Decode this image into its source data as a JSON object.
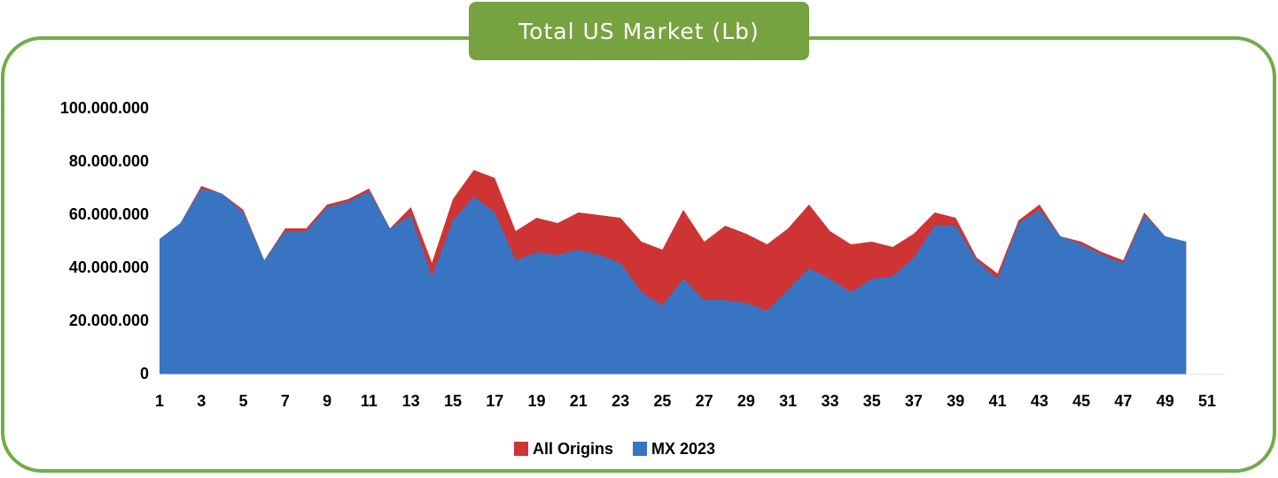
{
  "chart_data": {
    "type": "area",
    "title": "Total US Market (Lb)",
    "x": [
      1,
      2,
      3,
      4,
      5,
      6,
      7,
      8,
      9,
      10,
      11,
      12,
      13,
      14,
      15,
      16,
      17,
      18,
      19,
      20,
      21,
      22,
      23,
      24,
      25,
      26,
      27,
      28,
      29,
      30,
      31,
      32,
      33,
      34,
      35,
      36,
      37,
      38,
      39,
      40,
      41,
      42,
      43,
      44,
      45,
      46,
      47,
      48,
      49,
      50
    ],
    "series": [
      {
        "name": "All Origins",
        "color": "#cf3434",
        "values": [
          51000000,
          57000000,
          71000000,
          68000000,
          62000000,
          43000000,
          55000000,
          55000000,
          64000000,
          66000000,
          70000000,
          55000000,
          63000000,
          42000000,
          66000000,
          77000000,
          74000000,
          54000000,
          59000000,
          57000000,
          61000000,
          60000000,
          59000000,
          50000000,
          47000000,
          62000000,
          50000000,
          56000000,
          53000000,
          49000000,
          55000000,
          64000000,
          54000000,
          49000000,
          50000000,
          48000000,
          53000000,
          61000000,
          59000000,
          44000000,
          38000000,
          58000000,
          64000000,
          52000000,
          50000000,
          46000000,
          43000000,
          61000000,
          52000000,
          50000000
        ]
      },
      {
        "name": "MX 2023",
        "color": "#3874c2",
        "values": [
          51000000,
          57000000,
          70000000,
          68000000,
          61000000,
          43000000,
          54000000,
          54000000,
          63000000,
          65000000,
          69000000,
          55000000,
          60000000,
          37000000,
          58000000,
          67000000,
          61000000,
          43000000,
          46000000,
          45000000,
          47000000,
          45000000,
          42000000,
          31000000,
          26000000,
          36000000,
          28000000,
          28000000,
          27000000,
          24000000,
          32000000,
          40000000,
          36000000,
          31000000,
          36000000,
          37000000,
          44000000,
          56000000,
          56000000,
          43000000,
          36000000,
          57000000,
          62000000,
          52000000,
          49000000,
          45000000,
          42000000,
          60000000,
          52000000,
          50000000
        ]
      }
    ],
    "xlim": [
      1,
      51
    ],
    "xticks": [
      1,
      3,
      5,
      7,
      9,
      11,
      13,
      15,
      17,
      19,
      21,
      23,
      25,
      27,
      29,
      31,
      33,
      35,
      37,
      39,
      41,
      43,
      45,
      47,
      49,
      51
    ],
    "ylim": [
      0,
      100000000
    ],
    "yticks": [
      0,
      {
        "value": 20000000,
        "label": "20.000.000"
      },
      {
        "value": 40000000,
        "label": "40.000.000"
      },
      {
        "value": 60000000,
        "label": "60.000.000"
      },
      {
        "value": 80000000,
        "label": "80.000.000"
      },
      {
        "value": 100000000,
        "label": "100.000.000"
      }
    ],
    "legend": "bottom"
  }
}
